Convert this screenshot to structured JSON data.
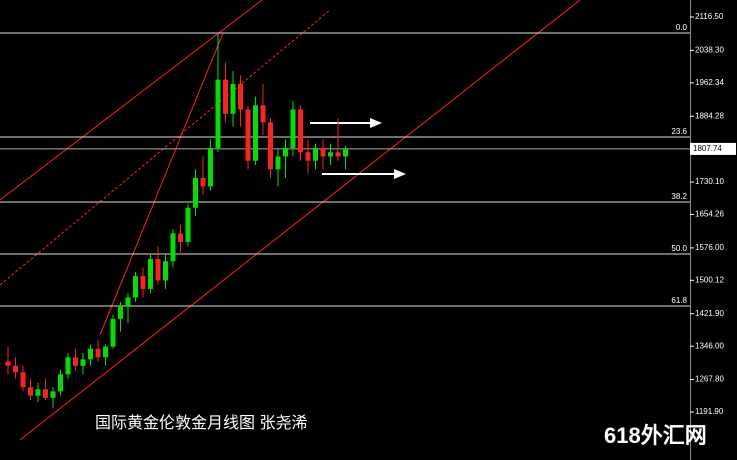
{
  "chart_data": {
    "type": "candlestick",
    "title": "国际黄金伦敦金月线图  张尧浠",
    "watermark": "618外汇网",
    "open": [
      1310,
      1300,
      1285,
      1250,
      1230,
      1245,
      1225,
      1240,
      1280,
      1320,
      1300,
      1315,
      1340,
      1320,
      1345,
      1410,
      1440,
      1460,
      1510,
      1480,
      1550,
      1500,
      1545,
      1610,
      1590,
      1670,
      1740,
      1720,
      1810,
      1970,
      1890,
      1960,
      1900,
      1780,
      1910,
      1870,
      1760,
      1790,
      1810,
      1900,
      1800,
      1780,
      1810,
      1790,
      1800,
      1790
    ],
    "high": [
      1345,
      1320,
      1300,
      1270,
      1260,
      1270,
      1250,
      1290,
      1330,
      1340,
      1330,
      1350,
      1360,
      1350,
      1420,
      1450,
      1470,
      1520,
      1530,
      1560,
      1580,
      1560,
      1620,
      1630,
      1680,
      1760,
      1790,
      1830,
      2079,
      2010,
      1990,
      1980,
      1910,
      1930,
      1960,
      1880,
      1810,
      1830,
      1920,
      1910,
      1830,
      1820,
      1830,
      1820,
      1880,
      1815
    ],
    "low": [
      1280,
      1270,
      1240,
      1220,
      1215,
      1220,
      1200,
      1230,
      1270,
      1290,
      1280,
      1300,
      1310,
      1300,
      1340,
      1380,
      1400,
      1450,
      1460,
      1470,
      1490,
      1480,
      1530,
      1560,
      1580,
      1650,
      1700,
      1710,
      1800,
      1870,
      1860,
      1860,
      1760,
      1770,
      1840,
      1740,
      1720,
      1740,
      1790,
      1780,
      1750,
      1760,
      1760,
      1770,
      1780,
      1760
    ],
    "close": [
      1300,
      1285,
      1250,
      1230,
      1245,
      1225,
      1240,
      1280,
      1320,
      1300,
      1315,
      1340,
      1320,
      1345,
      1410,
      1440,
      1460,
      1510,
      1480,
      1550,
      1500,
      1545,
      1610,
      1590,
      1670,
      1740,
      1720,
      1810,
      1970,
      1890,
      1960,
      1900,
      1780,
      1910,
      1870,
      1760,
      1790,
      1810,
      1900,
      1800,
      1780,
      1810,
      1790,
      1800,
      1790,
      1807.74
    ],
    "up_color": "#00e000",
    "down_color": "#ff2020",
    "ylim": [
      1079.5,
      2156.3
    ],
    "yticks": [
      {
        "value": 2116.5,
        "label": "2116.50"
      },
      {
        "value": 2038.3,
        "label": "2038.30"
      },
      {
        "value": 1962.34,
        "label": "1962.34"
      },
      {
        "value": 1884.28,
        "label": "1884.28"
      },
      {
        "value": 1730.1,
        "label": "1730.10"
      },
      {
        "value": 1654.26,
        "label": "1654.26"
      },
      {
        "value": 1576.0,
        "label": "1576.00"
      },
      {
        "value": 1500.12,
        "label": "1500.12"
      },
      {
        "value": 1421.9,
        "label": "1421.90"
      },
      {
        "value": 1346.0,
        "label": "1346.00"
      },
      {
        "value": 1267.8,
        "label": "1267.80"
      },
      {
        "value": 1191.9,
        "label": "1191.90"
      }
    ],
    "fib_levels": [
      {
        "name": "0.0",
        "price": 2079.0
      },
      {
        "name": "23.6",
        "price": 1835.6
      },
      {
        "name": "38.2",
        "price": 1683.4
      },
      {
        "name": "50.0",
        "price": 1561.7
      },
      {
        "name": "61.8",
        "price": 1440.0
      }
    ],
    "last_price": 1807.74
  }
}
